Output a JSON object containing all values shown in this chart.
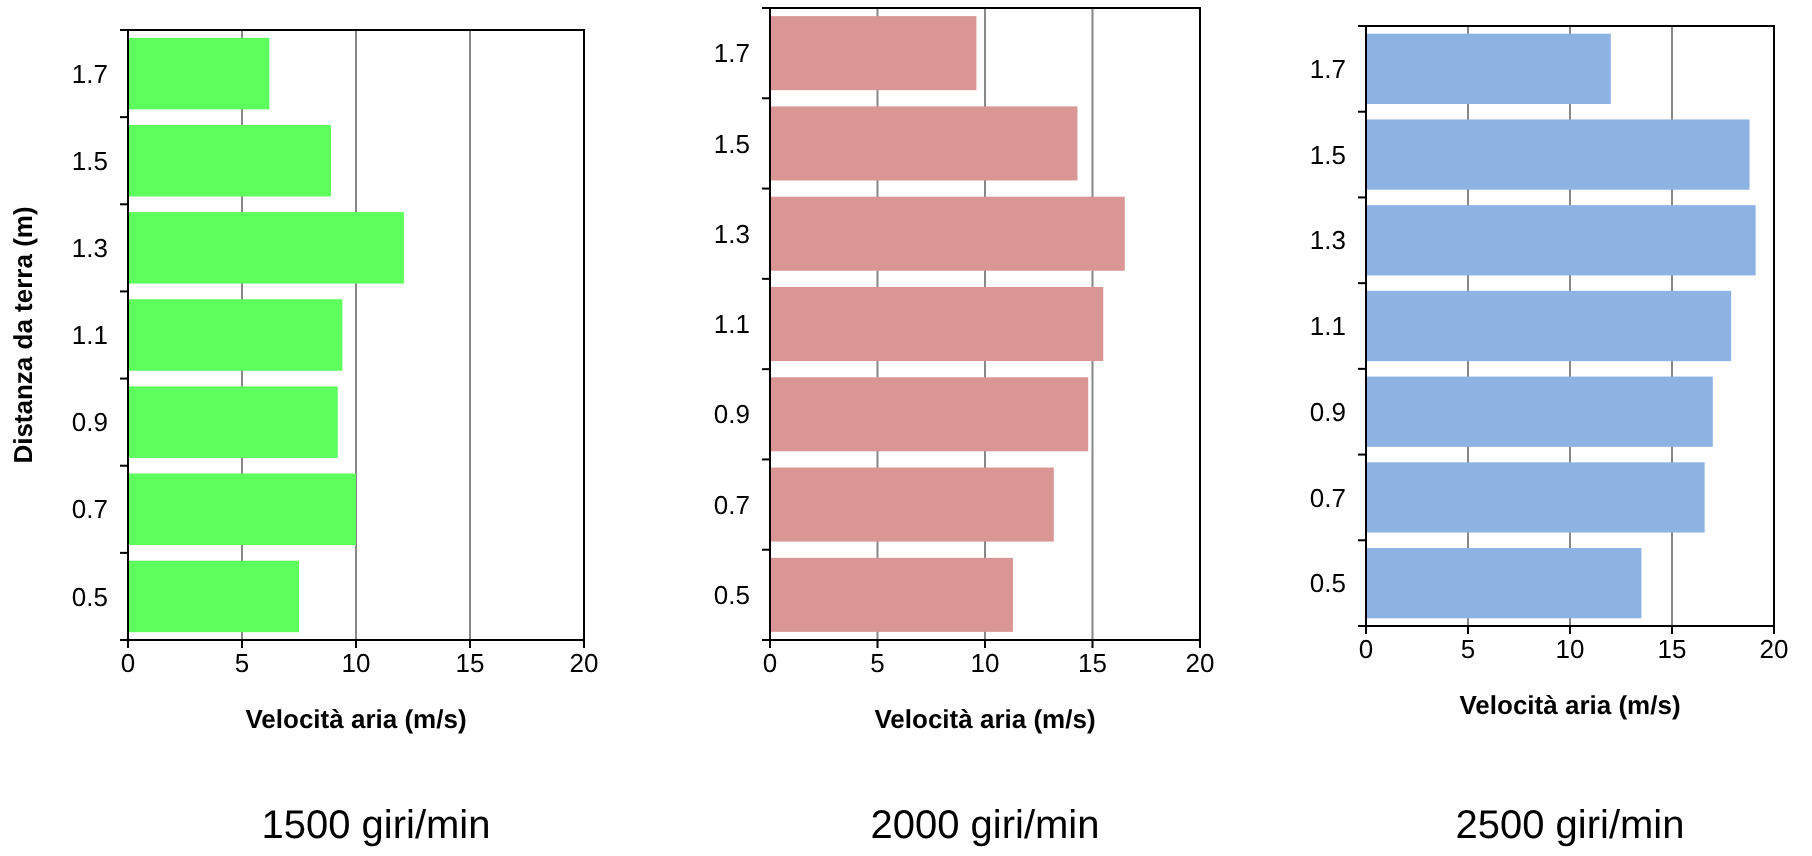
{
  "chart_data": [
    {
      "type": "bar",
      "orientation": "horizontal",
      "title": "1500 giri/min",
      "xlabel": "Velocità aria (m/s)",
      "ylabel": "Distanza da terra (m)",
      "categories": [
        "1.7",
        "1.5",
        "1.3",
        "1.1",
        "0.9",
        "0.7",
        "0.5"
      ],
      "values": [
        6.2,
        8.9,
        12.1,
        9.4,
        9.2,
        10.0,
        7.5
      ],
      "color": "#5cff5c",
      "xlim": [
        0,
        20
      ],
      "xticks": [
        0,
        5,
        10,
        15,
        20
      ],
      "grid": "x"
    },
    {
      "type": "bar",
      "orientation": "horizontal",
      "title": "2000 giri/min",
      "xlabel": "Velocità aria (m/s)",
      "categories": [
        "1.7",
        "1.5",
        "1.3",
        "1.1",
        "0.9",
        "0.7",
        "0.5"
      ],
      "values": [
        9.6,
        14.3,
        16.5,
        15.5,
        14.8,
        13.2,
        11.3
      ],
      "color": "#da9694",
      "xlim": [
        0,
        20
      ],
      "xticks": [
        0,
        5,
        10,
        15,
        20
      ],
      "grid": "x"
    },
    {
      "type": "bar",
      "orientation": "horizontal",
      "title": "2500 giri/min",
      "xlabel": "Velocità aria (m/s)",
      "categories": [
        "1.7",
        "1.5",
        "1.3",
        "1.1",
        "0.9",
        "0.7",
        "0.5"
      ],
      "values": [
        12.0,
        18.8,
        19.1,
        17.9,
        17.0,
        16.6,
        13.5
      ],
      "color": "#8db3e2",
      "xlim": [
        0,
        20
      ],
      "xticks": [
        0,
        5,
        10,
        15,
        20
      ],
      "grid": "x"
    }
  ]
}
